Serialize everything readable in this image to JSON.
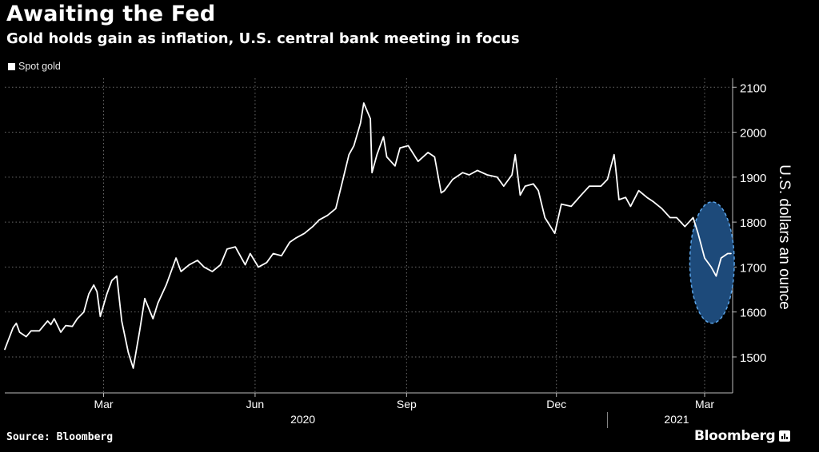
{
  "header": {
    "title": "Awaiting the Fed",
    "subtitle": "Gold holds gain as inflation, U.S. central bank meeting in focus"
  },
  "legend": {
    "label": "Spot gold"
  },
  "footer": {
    "source": "Source: Bloomberg",
    "brand": "Bloomberg",
    "brand_icon": "bar-chart-icon"
  },
  "colors": {
    "background": "#000000",
    "line": "#ffffff",
    "grid": "#6a6a6a",
    "highlight_fill": "#1d4a7a",
    "highlight_stroke": "#5aa4e8"
  },
  "chart_data": {
    "type": "line",
    "title": "Awaiting the Fed",
    "subtitle": "Gold holds gain as inflation, U.S. central bank meeting in focus",
    "ylabel": "U.S. dollars an ounce",
    "ylim": [
      1420,
      2120
    ],
    "y_ticks": [
      1500,
      1600,
      1700,
      1800,
      1900,
      2000,
      2100
    ],
    "y_axis_position": "right",
    "x_range": [
      "2020-01-01",
      "2021-03-18"
    ],
    "x_ticks": [
      {
        "date": "2020-03-01",
        "label": "Mar"
      },
      {
        "date": "2020-06-01",
        "label": "Jun"
      },
      {
        "date": "2020-09-01",
        "label": "Sep"
      },
      {
        "date": "2020-12-01",
        "label": "Dec"
      },
      {
        "date": "2021-03-01",
        "label": "Mar"
      }
    ],
    "year_labels": [
      {
        "date": "2020-06-30",
        "label": "2020"
      },
      {
        "date": "2021-02-12",
        "label": "2021"
      }
    ],
    "year_divider": "2021-01-01",
    "grid": true,
    "legend_position": "top-left",
    "highlight": {
      "shape": "ellipse",
      "x_from": "2021-02-20",
      "x_to": "2021-03-19",
      "y_from": 1575,
      "y_to": 1845
    },
    "series": [
      {
        "name": "Spot gold",
        "x": [
          "2020-01-01",
          "2020-01-06",
          "2020-01-08",
          "2020-01-10",
          "2020-01-14",
          "2020-01-17",
          "2020-01-22",
          "2020-01-27",
          "2020-01-29",
          "2020-01-31",
          "2020-02-04",
          "2020-02-07",
          "2020-02-11",
          "2020-02-14",
          "2020-02-18",
          "2020-02-21",
          "2020-02-24",
          "2020-02-26",
          "2020-02-28",
          "2020-03-03",
          "2020-03-06",
          "2020-03-09",
          "2020-03-12",
          "2020-03-16",
          "2020-03-19",
          "2020-03-23",
          "2020-03-26",
          "2020-03-31",
          "2020-04-03",
          "2020-04-08",
          "2020-04-14",
          "2020-04-17",
          "2020-04-22",
          "2020-04-27",
          "2020-05-01",
          "2020-05-06",
          "2020-05-11",
          "2020-05-15",
          "2020-05-20",
          "2020-05-26",
          "2020-05-29",
          "2020-06-03",
          "2020-06-08",
          "2020-06-12",
          "2020-06-17",
          "2020-06-22",
          "2020-06-26",
          "2020-07-01",
          "2020-07-06",
          "2020-07-10",
          "2020-07-15",
          "2020-07-20",
          "2020-07-24",
          "2020-07-28",
          "2020-07-31",
          "2020-08-04",
          "2020-08-06",
          "2020-08-10",
          "2020-08-11",
          "2020-08-14",
          "2020-08-18",
          "2020-08-20",
          "2020-08-25",
          "2020-08-28",
          "2020-09-02",
          "2020-09-08",
          "2020-09-14",
          "2020-09-18",
          "2020-09-22",
          "2020-09-24",
          "2020-09-29",
          "2020-10-05",
          "2020-10-09",
          "2020-10-14",
          "2020-10-20",
          "2020-10-26",
          "2020-10-30",
          "2020-11-04",
          "2020-11-06",
          "2020-11-09",
          "2020-11-12",
          "2020-11-17",
          "2020-11-20",
          "2020-11-24",
          "2020-11-30",
          "2020-12-04",
          "2020-12-10",
          "2020-12-16",
          "2020-12-21",
          "2020-12-28",
          "2021-01-01",
          "2021-01-05",
          "2021-01-06",
          "2021-01-08",
          "2021-01-12",
          "2021-01-15",
          "2021-01-20",
          "2021-01-25",
          "2021-01-29",
          "2021-02-03",
          "2021-02-08",
          "2021-02-12",
          "2021-02-17",
          "2021-02-22",
          "2021-02-25",
          "2021-03-01",
          "2021-03-05",
          "2021-03-08",
          "2021-03-11",
          "2021-03-15",
          "2021-03-17"
        ],
        "y": [
          1517,
          1565,
          1575,
          1555,
          1545,
          1558,
          1558,
          1580,
          1572,
          1585,
          1555,
          1570,
          1568,
          1585,
          1600,
          1640,
          1660,
          1645,
          1590,
          1640,
          1670,
          1680,
          1580,
          1510,
          1475,
          1560,
          1630,
          1585,
          1620,
          1660,
          1720,
          1690,
          1705,
          1715,
          1700,
          1690,
          1705,
          1740,
          1745,
          1705,
          1730,
          1700,
          1710,
          1730,
          1725,
          1755,
          1765,
          1775,
          1790,
          1805,
          1815,
          1830,
          1890,
          1950,
          1970,
          2020,
          2065,
          2030,
          1910,
          1950,
          1990,
          1945,
          1925,
          1965,
          1970,
          1935,
          1955,
          1945,
          1865,
          1870,
          1895,
          1910,
          1905,
          1915,
          1905,
          1900,
          1880,
          1905,
          1950,
          1860,
          1880,
          1885,
          1870,
          1810,
          1775,
          1840,
          1835,
          1860,
          1880,
          1880,
          1895,
          1950,
          1920,
          1850,
          1855,
          1835,
          1870,
          1855,
          1845,
          1830,
          1810,
          1810,
          1790,
          1810,
          1775,
          1720,
          1700,
          1680,
          1720,
          1730,
          1730
        ]
      }
    ]
  }
}
